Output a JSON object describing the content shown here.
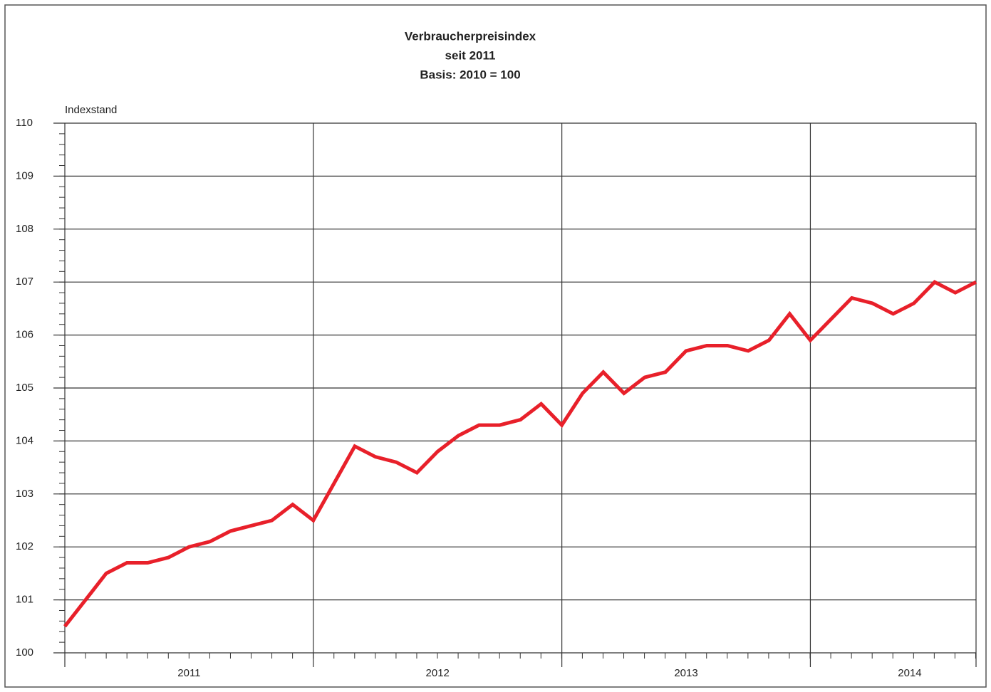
{
  "chart_data": {
    "type": "line",
    "title": "Verbraucherpreisindex",
    "subtitle": "seit 2011",
    "note": "Basis: 2010 = 100",
    "y_label": "Indexstand",
    "x": [
      2011,
      2011.0833,
      2011.1667,
      2011.25,
      2011.3333,
      2011.4167,
      2011.5,
      2011.5833,
      2011.6667,
      2011.75,
      2011.8333,
      2011.9167,
      2012,
      2012.0833,
      2012.1667,
      2012.25,
      2012.3333,
      2012.4167,
      2012.5,
      2012.5833,
      2012.6667,
      2012.75,
      2012.8333,
      2012.9167,
      2013,
      2013.0833,
      2013.1667,
      2013.25,
      2013.3333,
      2013.4167,
      2013.5,
      2013.5833,
      2013.6667,
      2013.75,
      2013.8333,
      2013.9167,
      2014,
      2014.0833,
      2014.1667,
      2014.25,
      2014.3333,
      2014.4167,
      2014.5,
      2014.5833,
      2014.6667
    ],
    "values": [
      100.5,
      101.0,
      101.5,
      101.7,
      101.7,
      101.8,
      102.0,
      102.1,
      102.3,
      102.4,
      102.5,
      102.8,
      102.5,
      103.2,
      103.9,
      103.7,
      103.6,
      103.4,
      103.8,
      104.1,
      104.3,
      104.3,
      104.4,
      104.7,
      104.3,
      104.9,
      105.3,
      104.9,
      105.2,
      105.3,
      105.7,
      105.8,
      105.8,
      105.7,
      105.9,
      106.4,
      105.9,
      106.3,
      106.7,
      106.6,
      106.4,
      106.6,
      107.0,
      106.8,
      107.0
    ],
    "color": "#e8202a",
    "xlim": [
      2011,
      2014.6667
    ],
    "xgrid": [
      2012,
      2013,
      2014
    ],
    "xticks": [
      {
        "value": 2011.5,
        "label": "2011"
      },
      {
        "value": 2012.5,
        "label": "2012"
      },
      {
        "value": 2013.5,
        "label": "2013"
      },
      {
        "value": 2014.4,
        "label": "2014"
      }
    ],
    "ylim": [
      100,
      110
    ],
    "yticks": [
      100,
      101,
      102,
      103,
      104,
      105,
      106,
      107,
      108,
      109,
      110
    ],
    "grid": true
  }
}
